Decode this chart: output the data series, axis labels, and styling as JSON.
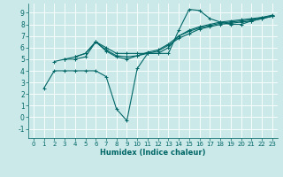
{
  "xlabel": "Humidex (Indice chaleur)",
  "background_color": "#cce9e9",
  "grid_color": "#ffffff",
  "line_color": "#006666",
  "xlim": [
    -0.5,
    23.5
  ],
  "ylim": [
    -1.8,
    9.8
  ],
  "xticks": [
    0,
    1,
    2,
    3,
    4,
    5,
    6,
    7,
    8,
    9,
    10,
    11,
    12,
    13,
    14,
    15,
    16,
    17,
    18,
    19,
    20,
    21,
    22,
    23
  ],
  "yticks": [
    -1,
    0,
    1,
    2,
    3,
    4,
    5,
    6,
    7,
    8,
    9
  ],
  "lines": [
    {
      "x": [
        1,
        2,
        3,
        4,
        5,
        6,
        7,
        8,
        9,
        10,
        11,
        12,
        13,
        14,
        15,
        16,
        17,
        18,
        19,
        20,
        21,
        22,
        23
      ],
      "y": [
        2.5,
        4.0,
        4.0,
        4.0,
        4.0,
        4.0,
        3.5,
        0.7,
        -0.3,
        4.2,
        5.5,
        5.5,
        5.5,
        7.5,
        9.3,
        9.2,
        8.5,
        8.2,
        8.0,
        8.0,
        8.3,
        8.5,
        8.7
      ]
    },
    {
      "x": [
        2,
        3,
        4,
        5,
        6,
        7,
        8,
        9,
        10,
        11,
        12,
        13,
        14,
        15,
        16,
        17,
        18,
        19,
        20,
        21,
        22,
        23
      ],
      "y": [
        4.8,
        5.0,
        5.0,
        5.2,
        6.5,
        6.0,
        5.5,
        5.5,
        5.5,
        5.5,
        5.5,
        6.0,
        7.0,
        7.5,
        7.8,
        8.0,
        8.2,
        8.3,
        8.4,
        8.5,
        8.6,
        8.7
      ]
    },
    {
      "x": [
        3,
        4,
        5,
        6,
        7,
        8,
        9,
        10,
        11,
        12,
        13,
        14,
        15,
        16,
        17,
        18,
        19,
        20,
        21,
        22,
        23
      ],
      "y": [
        5.0,
        5.2,
        5.5,
        6.5,
        5.8,
        5.3,
        5.2,
        5.3,
        5.5,
        5.7,
        6.2,
        6.8,
        7.2,
        7.6,
        7.8,
        8.0,
        8.1,
        8.2,
        8.3,
        8.5,
        8.7
      ]
    },
    {
      "x": [
        4,
        5,
        6,
        7,
        8,
        9,
        10,
        11,
        12,
        13,
        14,
        15,
        16,
        17,
        18,
        19,
        20,
        21,
        22,
        23
      ],
      "y": [
        5.2,
        5.5,
        6.5,
        5.7,
        5.2,
        5.0,
        5.3,
        5.6,
        5.8,
        6.3,
        7.0,
        7.4,
        7.7,
        7.9,
        8.1,
        8.2,
        8.3,
        8.4,
        8.6,
        8.8
      ]
    }
  ]
}
